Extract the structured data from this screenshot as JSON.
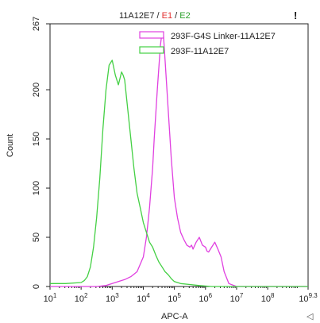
{
  "header": {
    "title_parts": [
      "11A12E7",
      "E1",
      "E2"
    ],
    "title_separator": " / ",
    "title_colors": [
      "#222222",
      "#e23030",
      "#2da12d"
    ],
    "corner_mark": "!"
  },
  "footer": {
    "corner_icon": "triangle-left-icon",
    "corner_glyph": "◁"
  },
  "chart_data": {
    "type": "line",
    "title": "",
    "xlabel": "APC-A",
    "ylabel": "Count",
    "x_scale": "log10",
    "xlim": [
      1,
      9.3
    ],
    "ylim": [
      0,
      267
    ],
    "x_ticks": [
      1,
      2,
      3,
      4,
      5,
      6,
      7,
      8,
      9.3
    ],
    "x_tick_labels": [
      {
        "base": "10",
        "exp": "1"
      },
      {
        "base": "10",
        "exp": "2"
      },
      {
        "base": "10",
        "exp": "3"
      },
      {
        "base": "10",
        "exp": "4"
      },
      {
        "base": "10",
        "exp": "5"
      },
      {
        "base": "10",
        "exp": "6"
      },
      {
        "base": "10",
        "exp": "7"
      },
      {
        "base": "10",
        "exp": "8"
      },
      {
        "base": "10",
        "exp": "9.3"
      }
    ],
    "y_ticks": [
      0,
      50,
      100,
      150,
      200,
      267
    ],
    "legend_position": "top-right",
    "series": [
      {
        "name": "293F-G4S Linker-11A12E7",
        "color": "#e040e0",
        "x": [
          1.0,
          2.5,
          2.8,
          3.0,
          3.2,
          3.4,
          3.6,
          3.8,
          4.0,
          4.1,
          4.2,
          4.3,
          4.35,
          4.45,
          4.55,
          4.6,
          4.65,
          4.7,
          4.8,
          4.9,
          5.0,
          5.1,
          5.2,
          5.3,
          5.4,
          5.5,
          5.55,
          5.6,
          5.7,
          5.8,
          5.9,
          6.0,
          6.05,
          6.1,
          6.2,
          6.3,
          6.4,
          6.5,
          6.6,
          6.75,
          7.0,
          9.3
        ],
        "y": [
          0,
          0,
          1,
          3,
          5,
          7,
          10,
          15,
          30,
          50,
          80,
          120,
          150,
          200,
          245,
          258,
          255,
          230,
          180,
          130,
          90,
          70,
          55,
          48,
          42,
          40,
          42,
          38,
          45,
          50,
          42,
          40,
          36,
          35,
          40,
          45,
          38,
          30,
          15,
          3,
          0,
          0
        ]
      },
      {
        "name": "293F-11A12E7",
        "color": "#44d044",
        "x": [
          1.0,
          1.5,
          2.0,
          2.1,
          2.2,
          2.3,
          2.4,
          2.5,
          2.6,
          2.7,
          2.8,
          2.9,
          3.0,
          3.1,
          3.2,
          3.3,
          3.35,
          3.4,
          3.5,
          3.6,
          3.7,
          3.8,
          3.9,
          4.0,
          4.1,
          4.2,
          4.3,
          4.4,
          4.5,
          4.6,
          4.7,
          4.8,
          4.9,
          5.0,
          5.2,
          5.5,
          5.8,
          6.2,
          9.3
        ],
        "y": [
          3,
          3,
          4,
          6,
          10,
          20,
          40,
          70,
          110,
          160,
          200,
          225,
          230,
          215,
          205,
          218,
          215,
          210,
          180,
          150,
          120,
          95,
          80,
          65,
          55,
          45,
          40,
          32,
          25,
          20,
          15,
          12,
          8,
          5,
          3,
          2,
          1,
          0,
          0
        ]
      }
    ]
  }
}
